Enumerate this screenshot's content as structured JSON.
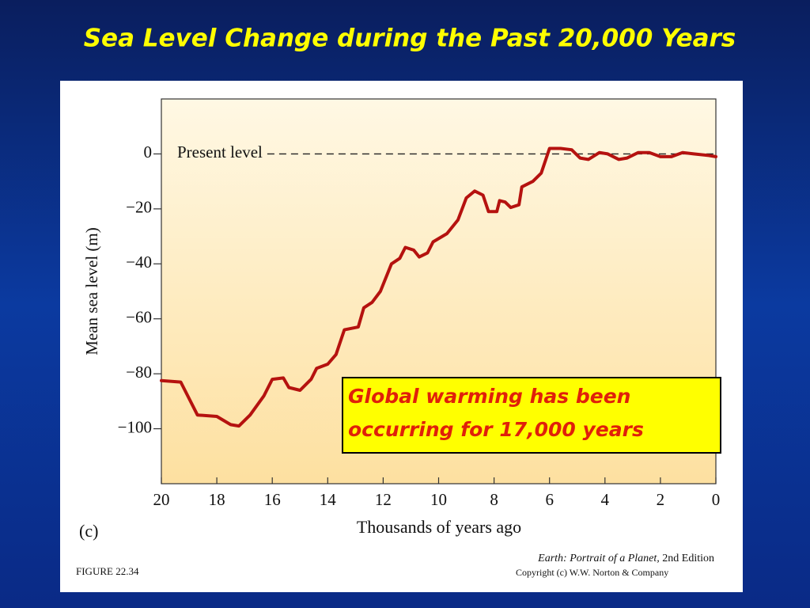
{
  "chart_data": {
    "type": "line",
    "title": "Sea Level Change during the Past 20,000 Years",
    "xlabel": "Thousands of years ago",
    "ylabel": "Mean sea level (m)",
    "panel_label": "(c)",
    "annotation": "Global warming has been occurring for 17,000 years",
    "reference_line": {
      "value": 0,
      "label": "Present level"
    },
    "figure_label": "FIGURE 22.34",
    "source_title": "Earth: Portrait of a Planet,",
    "source_edition": "2nd Edition",
    "copyright": "Copyright (c) W.W. Norton & Company",
    "color": "#b5120f",
    "xlim": [
      20,
      0
    ],
    "ylim": [
      -120,
      20
    ],
    "xticks": [
      20,
      18,
      16,
      14,
      12,
      10,
      8,
      6,
      4,
      2,
      0
    ],
    "yticks": [
      0,
      {
        "value": -20,
        "label": "−20"
      },
      {
        "value": -40,
        "label": "−40"
      },
      {
        "value": -60,
        "label": "−60"
      },
      {
        "value": -80,
        "label": "−80"
      },
      {
        "value": -100,
        "label": "−100"
      }
    ],
    "x": [
      20,
      19.3,
      18.7,
      18,
      17.5,
      17.2,
      16.8,
      16.3,
      16,
      15.6,
      15.4,
      15,
      14.6,
      14.4,
      14,
      13.7,
      13.4,
      12.9,
      12.7,
      12.4,
      12.1,
      11.7,
      11.4,
      11.2,
      10.9,
      10.7,
      10.4,
      10.2,
      9.7,
      9.3,
      9,
      8.7,
      8.4,
      8.2,
      7.9,
      7.8,
      7.6,
      7.4,
      7.1,
      7,
      6.6,
      6.3,
      6,
      5.6,
      5.2,
      4.9,
      4.6,
      4.2,
      3.9,
      3.5,
      3.2,
      2.8,
      2.4,
      2,
      1.6,
      1.2,
      0.8,
      0.3,
      0
    ],
    "values": [
      -82.5,
      -83,
      -95,
      -95.5,
      -98.5,
      -99,
      -95,
      -88,
      -82,
      -81.5,
      -85,
      -86,
      -82,
      -78,
      -76.5,
      -73,
      -64,
      -63,
      -56,
      -54,
      -50,
      -40,
      -38,
      -34,
      -35,
      -37.5,
      -36,
      -32,
      -29,
      -24,
      -16,
      -13.5,
      -15,
      -21,
      -21,
      -17,
      -17.5,
      -19.5,
      -18.5,
      -12,
      -10,
      -7,
      2,
      2,
      1.5,
      -1.5,
      -2,
      0.5,
      0,
      -2,
      -1.5,
      0.5,
      0.5,
      -1,
      -1,
      0.5,
      0,
      -0.5,
      -1
    ]
  }
}
